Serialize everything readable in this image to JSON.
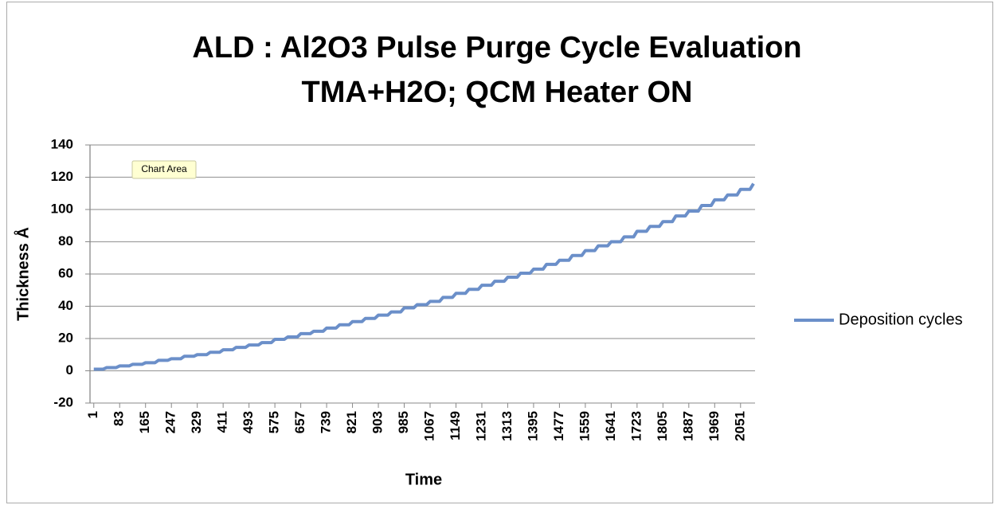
{
  "chart_data": {
    "type": "line",
    "title_lines": [
      "ALD : Al2O3 Pulse Purge Cycle Evaluation",
      "TMA+H2O; QCM Heater ON"
    ],
    "x_label": "Time",
    "y_label": "Thickness Å",
    "tooltip": "Chart Area",
    "legend": "right",
    "grid": true,
    "xlim": [
      -11,
      2097
    ],
    "ylim": [
      -20,
      140
    ],
    "yticks": [
      -20,
      0,
      20,
      40,
      60,
      80,
      100,
      120,
      140
    ],
    "xticks": [
      1,
      83,
      165,
      247,
      329,
      411,
      493,
      575,
      657,
      739,
      821,
      903,
      985,
      1067,
      1149,
      1231,
      1313,
      1395,
      1477,
      1559,
      1641,
      1723,
      1805,
      1887,
      1969,
      2051
    ],
    "x": [
      1,
      31,
      42,
      72,
      83,
      113,
      124,
      154,
      165,
      195,
      206,
      236,
      247,
      277,
      288,
      318,
      329,
      359,
      370,
      400,
      411,
      441,
      452,
      482,
      493,
      523,
      534,
      564,
      575,
      605,
      616,
      646,
      657,
      687,
      698,
      728,
      739,
      769,
      780,
      810,
      821,
      851,
      862,
      892,
      903,
      933,
      944,
      974,
      985,
      1015,
      1026,
      1056,
      1067,
      1097,
      1108,
      1138,
      1149,
      1179,
      1190,
      1220,
      1231,
      1261,
      1272,
      1302,
      1313,
      1343,
      1354,
      1384,
      1395,
      1425,
      1436,
      1466,
      1477,
      1507,
      1518,
      1548,
      1559,
      1589,
      1600,
      1630,
      1641,
      1671,
      1682,
      1712,
      1723,
      1753,
      1764,
      1794,
      1805,
      1835,
      1846,
      1876,
      1887,
      1917,
      1928,
      1958,
      1969,
      1999,
      2010,
      2040,
      2051,
      2081,
      2092
    ],
    "series": [
      {
        "name": "Deposition cycles",
        "color": "#6b8fc9",
        "values": [
          1,
          1,
          2,
          2,
          3,
          3,
          4,
          4,
          5,
          5,
          6.5,
          6.5,
          7.5,
          7.5,
          9,
          9,
          10,
          10,
          11.5,
          11.5,
          13,
          13,
          14.5,
          14.5,
          16,
          16,
          17.5,
          17.5,
          19.5,
          19.5,
          21,
          21,
          23,
          23,
          24.5,
          24.5,
          26.5,
          26.5,
          28.5,
          28.5,
          30.5,
          30.5,
          32.5,
          32.5,
          34.5,
          34.5,
          36.5,
          36.5,
          39,
          39,
          41,
          41,
          43,
          43,
          45.5,
          45.5,
          48,
          48,
          50.5,
          50.5,
          53,
          53,
          55.5,
          55.5,
          58,
          58,
          60.5,
          60.5,
          63,
          63,
          66,
          66,
          68.5,
          68.5,
          71.5,
          71.5,
          74.5,
          74.5,
          77.5,
          77.5,
          80,
          80,
          83,
          83,
          86.5,
          86.5,
          89.5,
          89.5,
          92.5,
          92.5,
          96,
          96,
          99,
          99,
          102.5,
          102.5,
          106,
          106,
          109,
          109,
          112.5,
          112.5,
          116
        ]
      }
    ]
  }
}
